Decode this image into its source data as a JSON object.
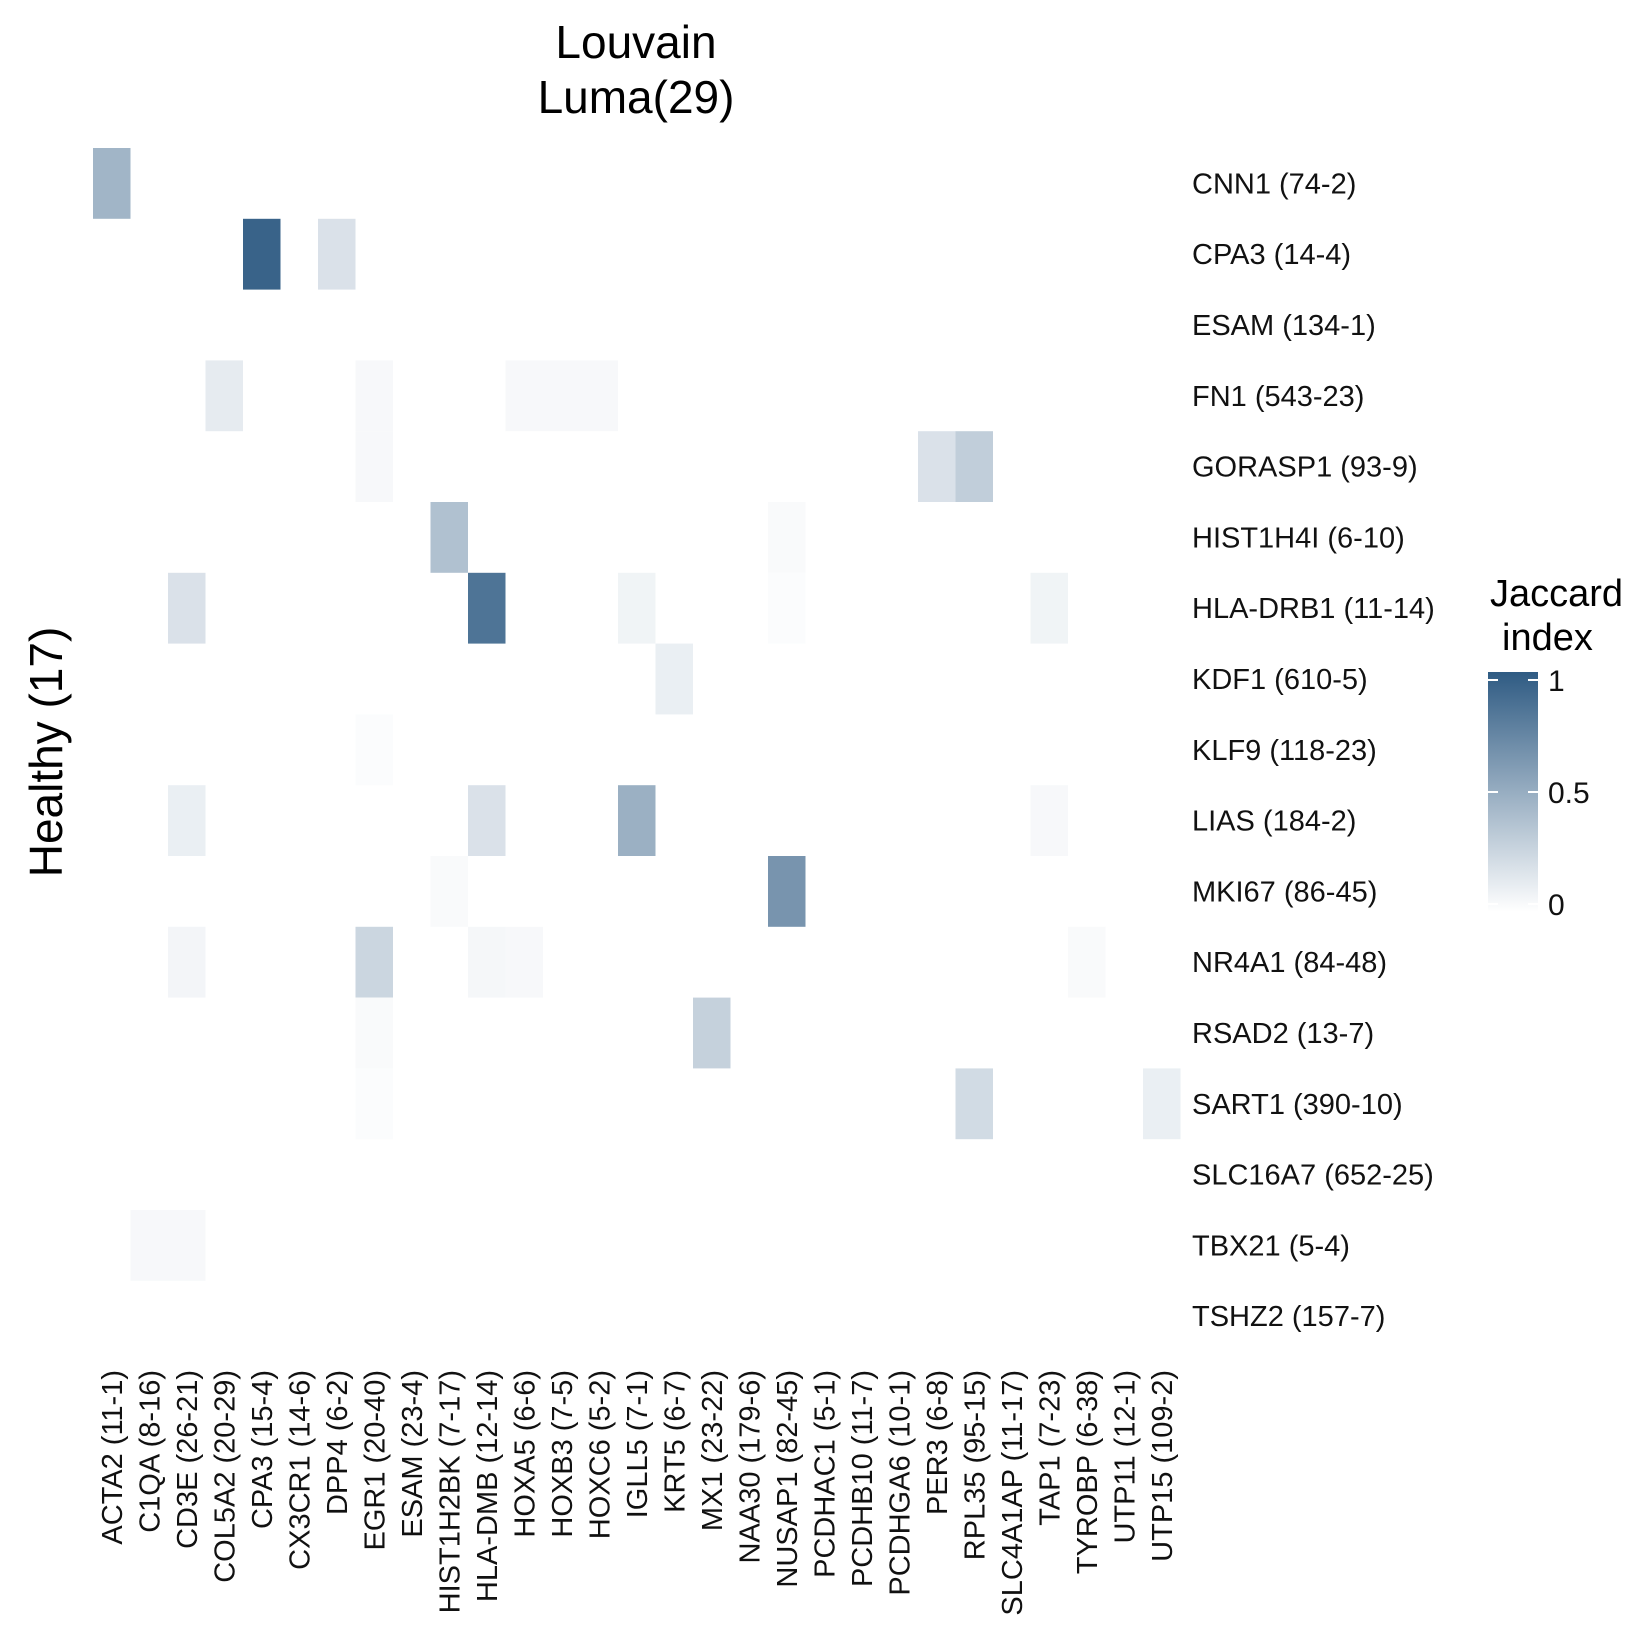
{
  "chart_data": {
    "type": "heatmap",
    "title": [
      "Louvain",
      "Luma(29)"
    ],
    "ylabel": "Healthy (17)",
    "xlabel": "",
    "legend": {
      "title": [
        "Jaccard",
        "index"
      ],
      "ticks": [
        {
          "value": 1,
          "label": "1"
        },
        {
          "value": 0.5,
          "label": "0.5"
        },
        {
          "value": 0,
          "label": "0"
        }
      ],
      "range": [
        0,
        1
      ],
      "color_low": "#ffffff",
      "color_high": "#2f5b83",
      "placement": "right"
    },
    "columns": [
      "ACTA2 (11-1)",
      "C1QA (8-16)",
      "CD3E (26-21)",
      "COL5A2 (20-29)",
      "CPA3 (15-4)",
      "CX3CR1 (14-6)",
      "DPP4 (6-2)",
      "EGR1 (20-40)",
      "ESAM (23-4)",
      "HIST1H2BK (7-17)",
      "HLA-DMB (12-14)",
      "HOXA5 (6-6)",
      "HOXB3 (7-5)",
      "HOXC6 (5-2)",
      "IGLL5 (7-1)",
      "KRT5 (6-7)",
      "MX1 (23-22)",
      "NAA30 (179-6)",
      "NUSAP1 (82-45)",
      "PCDHAC1 (5-1)",
      "PCDHB10 (11-7)",
      "PCDHGA6 (10-1)",
      "PER3 (6-8)",
      "RPL35 (95-15)",
      "SLC4A1AP (11-17)",
      "TAP1 (7-23)",
      "TYROBP (6-38)",
      "UTP11 (12-1)",
      "UTP15 (109-2)"
    ],
    "rows": [
      "CNN1 (74-2)",
      "CPA3 (14-4)",
      "ESAM (134-1)",
      "FN1 (543-23)",
      "GORASP1 (93-9)",
      "HIST1H4I (6-10)",
      "HLA-DRB1 (11-14)",
      "KDF1 (610-5)",
      "KLF9 (118-23)",
      "LIAS (184-2)",
      "MKI67 (86-45)",
      "NR4A1 (84-48)",
      "RSAD2 (13-7)",
      "SART1 (390-10)",
      "SLC16A7 (652-25)",
      "TBX21 (5-4)",
      "TSHZ2 (157-7)"
    ],
    "cells": [
      {
        "row": 0,
        "col": 0,
        "value": 0.45
      },
      {
        "row": 1,
        "col": 4,
        "value": 0.95
      },
      {
        "row": 1,
        "col": 6,
        "value": 0.18
      },
      {
        "row": 3,
        "col": 3,
        "value": 0.12
      },
      {
        "row": 3,
        "col": 7,
        "value": 0.04
      },
      {
        "row": 3,
        "col": 11,
        "value": 0.04
      },
      {
        "row": 3,
        "col": 12,
        "value": 0.04
      },
      {
        "row": 3,
        "col": 13,
        "value": 0.04
      },
      {
        "row": 4,
        "col": 7,
        "value": 0.04
      },
      {
        "row": 4,
        "col": 22,
        "value": 0.18
      },
      {
        "row": 4,
        "col": 23,
        "value": 0.3
      },
      {
        "row": 5,
        "col": 9,
        "value": 0.38
      },
      {
        "row": 5,
        "col": 18,
        "value": 0.03
      },
      {
        "row": 6,
        "col": 2,
        "value": 0.18
      },
      {
        "row": 6,
        "col": 10,
        "value": 0.85
      },
      {
        "row": 6,
        "col": 14,
        "value": 0.07
      },
      {
        "row": 6,
        "col": 18,
        "value": 0.02
      },
      {
        "row": 6,
        "col": 25,
        "value": 0.07
      },
      {
        "row": 7,
        "col": 15,
        "value": 0.1
      },
      {
        "row": 8,
        "col": 7,
        "value": 0.02
      },
      {
        "row": 9,
        "col": 2,
        "value": 0.1
      },
      {
        "row": 9,
        "col": 10,
        "value": 0.18
      },
      {
        "row": 9,
        "col": 14,
        "value": 0.48
      },
      {
        "row": 9,
        "col": 25,
        "value": 0.04
      },
      {
        "row": 10,
        "col": 9,
        "value": 0.03
      },
      {
        "row": 10,
        "col": 18,
        "value": 0.65
      },
      {
        "row": 11,
        "col": 2,
        "value": 0.06
      },
      {
        "row": 11,
        "col": 7,
        "value": 0.25
      },
      {
        "row": 11,
        "col": 10,
        "value": 0.05
      },
      {
        "row": 11,
        "col": 11,
        "value": 0.04
      },
      {
        "row": 11,
        "col": 26,
        "value": 0.03
      },
      {
        "row": 12,
        "col": 7,
        "value": 0.03
      },
      {
        "row": 12,
        "col": 16,
        "value": 0.28
      },
      {
        "row": 13,
        "col": 7,
        "value": 0.02
      },
      {
        "row": 13,
        "col": 23,
        "value": 0.22
      },
      {
        "row": 13,
        "col": 28,
        "value": 0.1
      },
      {
        "row": 15,
        "col": 1,
        "value": 0.04
      },
      {
        "row": 15,
        "col": 2,
        "value": 0.04
      }
    ]
  }
}
